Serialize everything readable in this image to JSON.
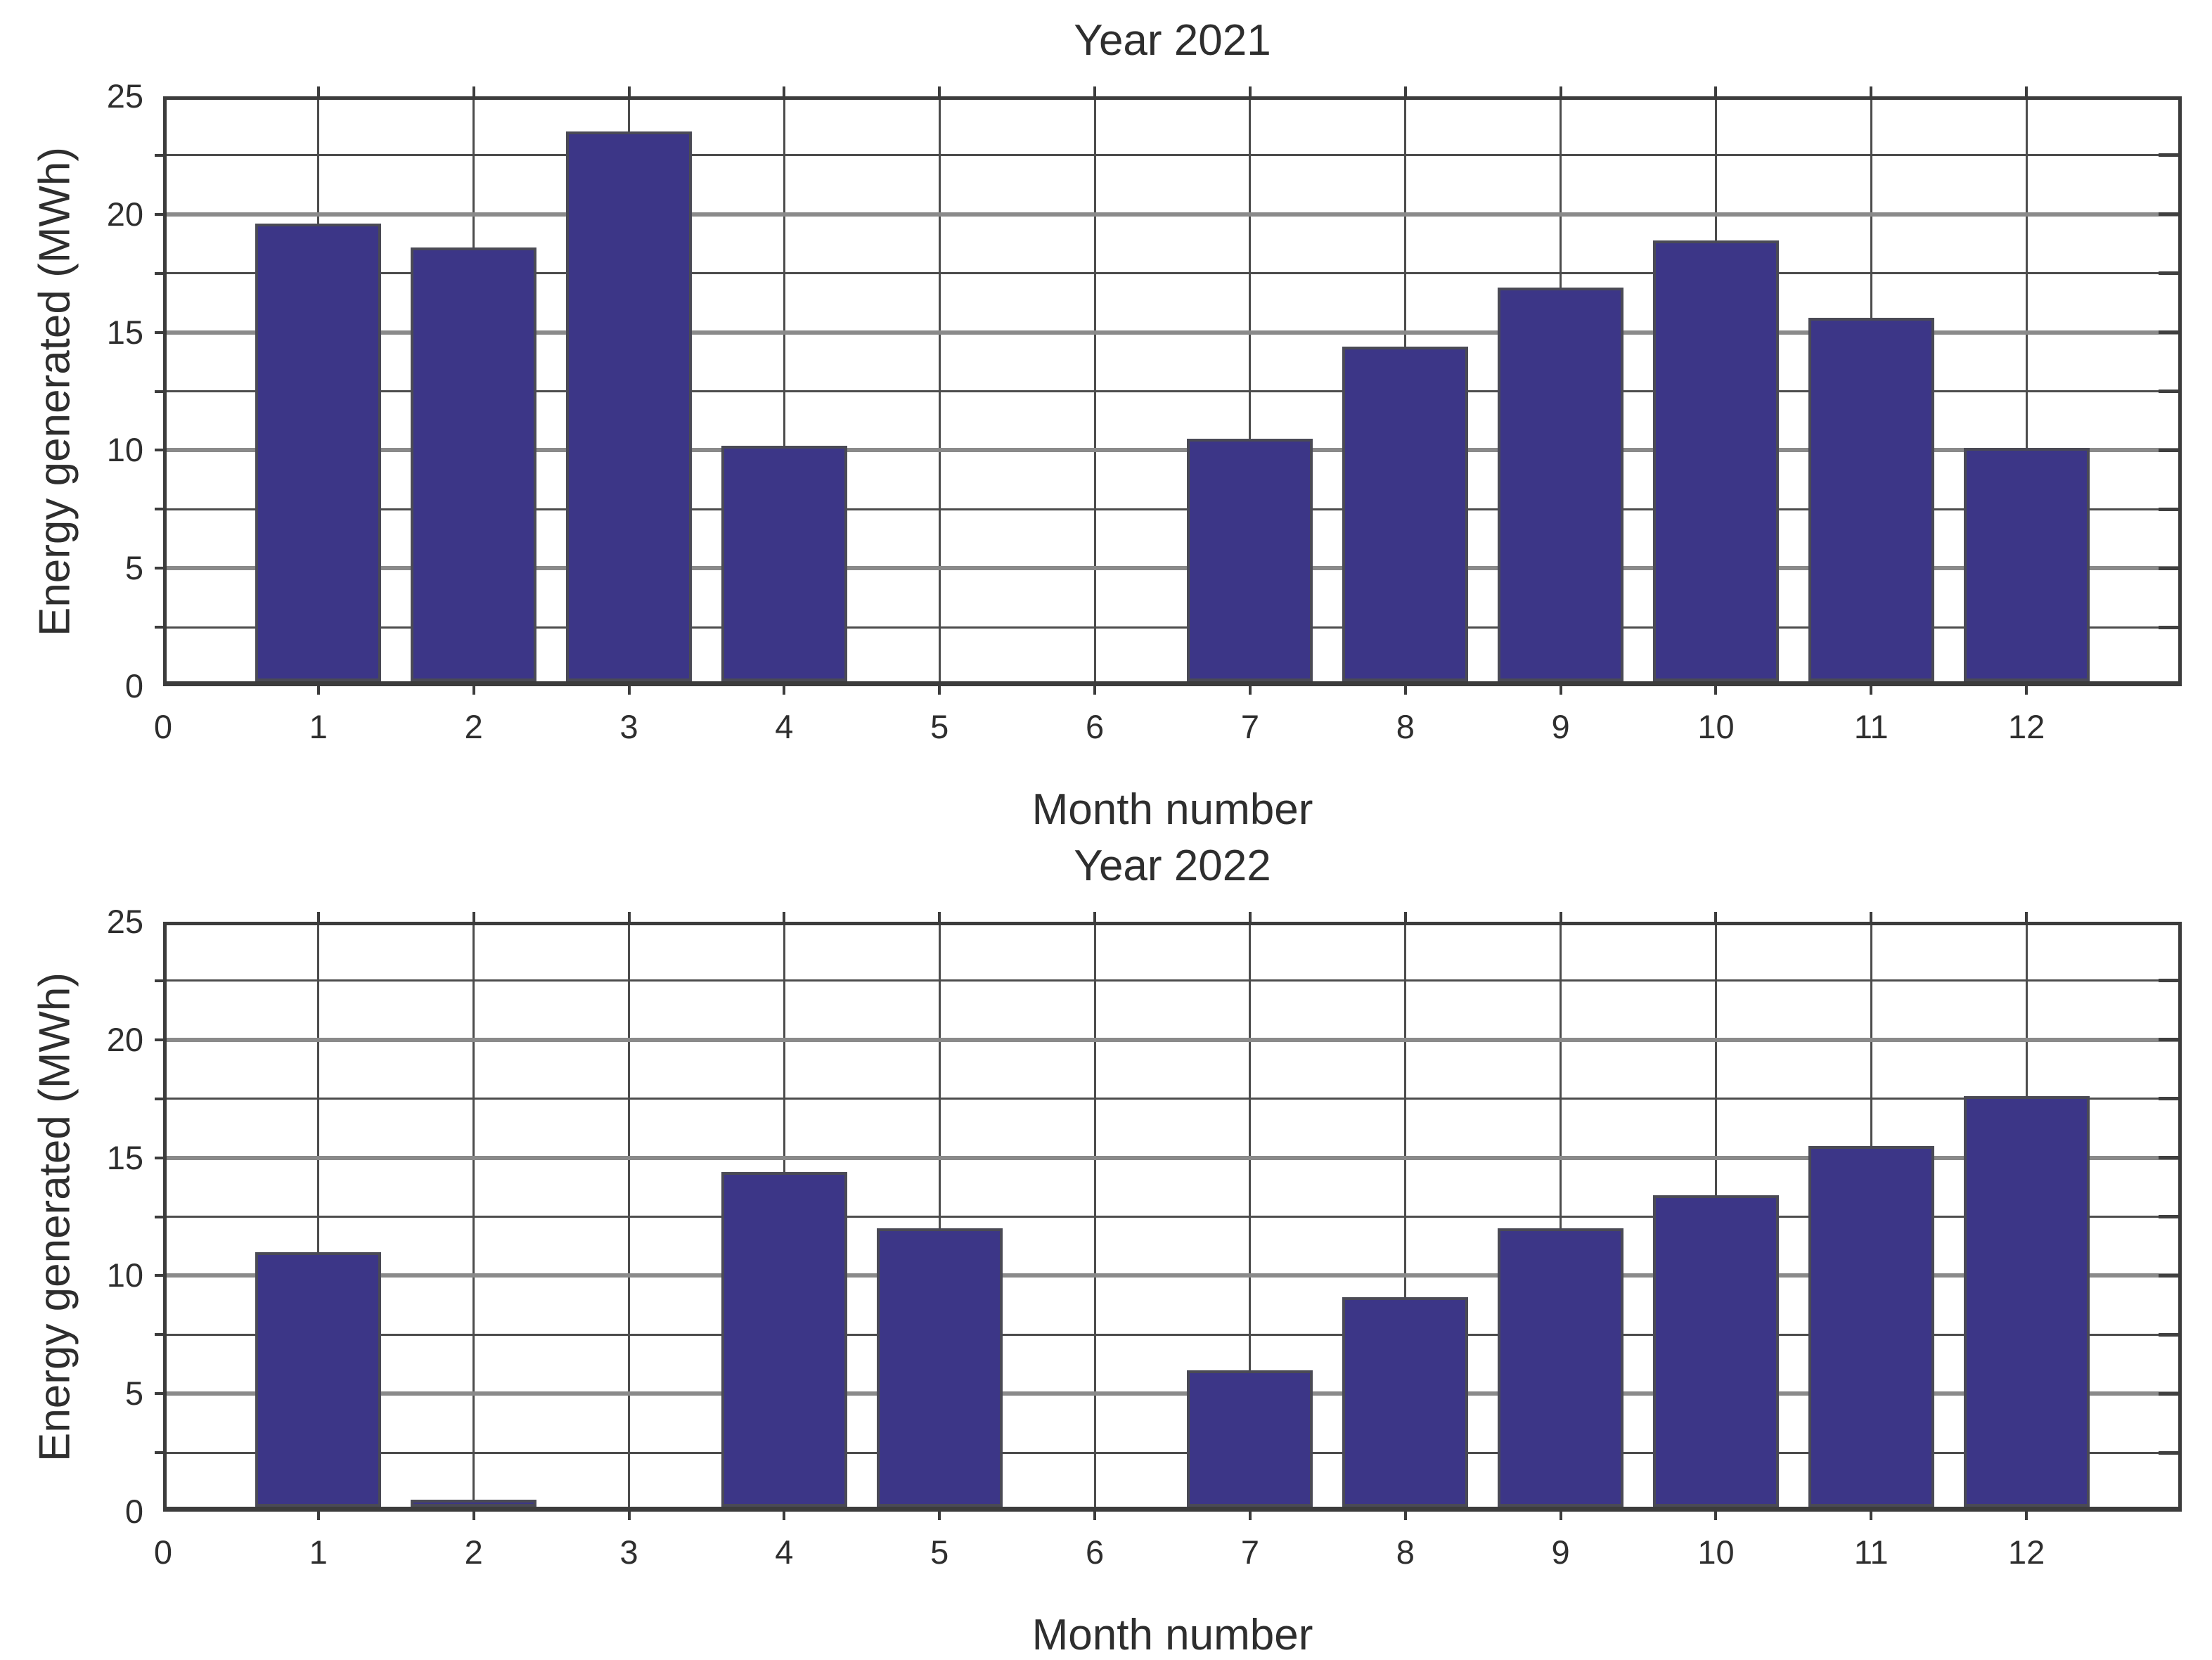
{
  "figure": {
    "background": "#ffffff"
  },
  "colors": {
    "bar_fill": "#3c3687",
    "bar_edge": "#4a4a55",
    "grid_major": "#8a8a8a",
    "grid_minor": "#4c4c4c",
    "box_border": "#3c3c3c",
    "text": "#2e2e2e"
  },
  "chart_data": [
    {
      "type": "bar",
      "title": "Year 2021",
      "xlabel": "Month number",
      "ylabel": "Energy generated (MWh)",
      "categories": [
        1,
        2,
        3,
        4,
        5,
        6,
        7,
        8,
        9,
        10,
        11,
        12
      ],
      "values": [
        19.6,
        18.6,
        23.5,
        10.2,
        0,
        0,
        10.5,
        14.4,
        16.9,
        18.9,
        15.6,
        10.1
      ],
      "xticks": [
        0,
        1,
        2,
        3,
        4,
        5,
        6,
        7,
        8,
        9,
        10,
        11,
        12
      ],
      "yticks": [
        0,
        5,
        10,
        15,
        20,
        25
      ],
      "xlim": [
        0,
        13
      ],
      "ylim": [
        0,
        25
      ],
      "y_minor_interval": 2.5,
      "grid": "on",
      "legend": "none"
    },
    {
      "type": "bar",
      "title": "Year 2022",
      "xlabel": "Month number",
      "ylabel": "Energy generated (MWh)",
      "categories": [
        1,
        2,
        3,
        4,
        5,
        6,
        7,
        8,
        9,
        10,
        11,
        12
      ],
      "values": [
        11.0,
        0.5,
        0,
        14.4,
        12.0,
        0,
        6.0,
        9.1,
        12.0,
        13.4,
        15.5,
        17.6
      ],
      "xticks": [
        0,
        1,
        2,
        3,
        4,
        5,
        6,
        7,
        8,
        9,
        10,
        11,
        12
      ],
      "yticks": [
        0,
        5,
        10,
        15,
        20,
        25
      ],
      "xlim": [
        0,
        13
      ],
      "ylim": [
        0,
        25
      ],
      "y_minor_interval": 2.5,
      "grid": "on",
      "legend": "none"
    }
  ]
}
